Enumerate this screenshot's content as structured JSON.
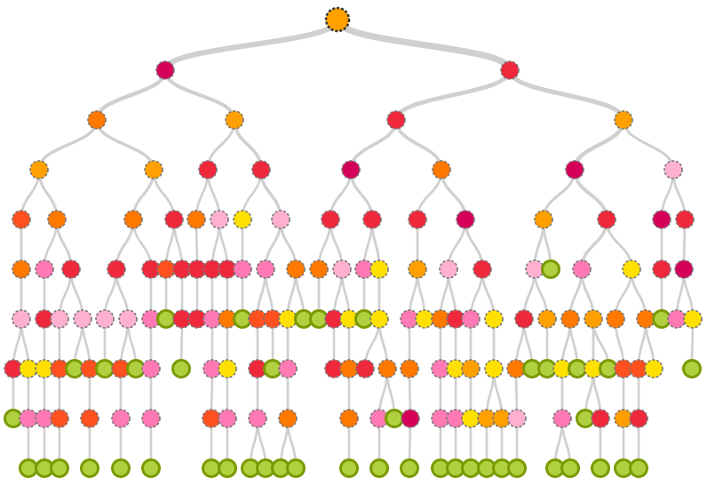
{
  "palette": {
    "amber": "#ffa000",
    "crimson": "#d4005a",
    "red": "#f0283c",
    "orange": "#ff7800",
    "redorange": "#ff5020",
    "pink": "#ff7ab4",
    "lightpink": "#ffb0d0",
    "yellow": "#ffe000",
    "green": "#b0d040",
    "green_stroke": "#7a9a00",
    "node_border": "#777777",
    "edge": "#d0d0d0"
  },
  "levels": [
    [
      {
        "c": "amber",
        "p": null
      }
    ],
    [
      {
        "c": "crimson",
        "p": 0
      },
      {
        "c": "red",
        "p": 0
      }
    ],
    [
      {
        "c": "orange",
        "p": 0
      },
      {
        "c": "amber",
        "p": 0
      },
      {
        "c": "red",
        "p": 1
      },
      {
        "c": "amber",
        "p": 1
      }
    ],
    [
      {
        "c": "amber",
        "p": 0
      },
      {
        "c": "amber",
        "p": 0
      },
      {
        "c": "red",
        "p": 1
      },
      {
        "c": "red",
        "p": 1
      },
      {
        "c": "crimson",
        "p": 2
      },
      {
        "c": "orange",
        "p": 2
      },
      {
        "c": "crimson",
        "p": 3
      },
      {
        "c": "lightpink",
        "p": 3
      }
    ],
    [
      {
        "c": "redorange",
        "p": 0
      },
      {
        "c": "orange",
        "p": 0
      },
      {
        "c": "orange",
        "p": 1
      },
      {
        "c": "red",
        "p": 1
      },
      {
        "c": "orange",
        "p": 2
      },
      {
        "c": "lightpink",
        "p": 2
      },
      {
        "c": "yellow",
        "p": 3
      },
      {
        "c": "lightpink",
        "p": 3
      },
      {
        "c": "red",
        "p": 4
      },
      {
        "c": "red",
        "p": 4
      },
      {
        "c": "red",
        "p": 5
      },
      {
        "c": "crimson",
        "p": 5
      },
      {
        "c": "amber",
        "p": 6
      },
      {
        "c": "red",
        "p": 6
      },
      {
        "c": "crimson",
        "p": 7
      },
      {
        "c": "red",
        "p": 7
      }
    ],
    [
      {
        "c": "orange",
        "p": 0
      },
      {
        "c": "pink",
        "p": 1
      },
      {
        "c": "red",
        "p": 1
      },
      {
        "c": "red",
        "p": 2
      },
      {
        "c": "red",
        "p": 2
      },
      {
        "c": "redorange",
        "p": 3
      },
      {
        "c": "red",
        "p": 3
      },
      {
        "c": "red",
        "p": 4
      },
      {
        "c": "red",
        "p": 5
      },
      {
        "c": "red",
        "p": 5
      },
      {
        "c": "pink",
        "p": 6
      },
      {
        "c": "pink",
        "p": 7
      },
      {
        "c": "orange",
        "p": 7
      },
      {
        "c": "orange",
        "p": 8
      },
      {
        "c": "lightpink",
        "p": 8
      },
      {
        "c": "pink",
        "p": 9
      },
      {
        "c": "yellow",
        "p": 9
      },
      {
        "c": "amber",
        "p": 10
      },
      {
        "c": "lightpink",
        "p": 11
      },
      {
        "c": "red",
        "p": 11
      },
      {
        "c": "lightpink",
        "p": 12
      },
      {
        "c": "green",
        "p": 12
      },
      {
        "c": "pink",
        "p": 13
      },
      {
        "c": "yellow",
        "p": 13
      },
      {
        "c": "red",
        "p": 14
      },
      {
        "c": "crimson",
        "p": 15
      }
    ],
    [
      {
        "c": "lightpink",
        "p": 0
      },
      {
        "c": "red",
        "p": 1
      },
      {
        "c": "lightpink",
        "p": 2
      },
      {
        "c": "lightpink",
        "p": 2
      },
      {
        "c": "lightpink",
        "p": 3
      },
      {
        "c": "lightpink",
        "p": 3
      },
      {
        "c": "pink",
        "p": 4
      },
      {
        "c": "green",
        "p": 5
      },
      {
        "c": "red",
        "p": 6
      },
      {
        "c": "red",
        "p": 7
      },
      {
        "c": "pink",
        "p": 8
      },
      {
        "c": "orange",
        "p": 9
      },
      {
        "c": "green",
        "p": 10
      },
      {
        "c": "redorange",
        "p": 11
      },
      {
        "c": "redorange",
        "p": 11
      },
      {
        "c": "yellow",
        "p": 12
      },
      {
        "c": "green",
        "p": 12
      },
      {
        "c": "green",
        "p": 13
      },
      {
        "c": "red",
        "p": 14
      },
      {
        "c": "yellow",
        "p": 14
      },
      {
        "c": "green",
        "p": 15
      },
      {
        "c": "yellow",
        "p": 16
      },
      {
        "c": "pink",
        "p": 17
      },
      {
        "c": "yellow",
        "p": 17
      },
      {
        "c": "orange",
        "p": 18
      },
      {
        "c": "red",
        "p": 18
      },
      {
        "c": "pink",
        "p": 19
      },
      {
        "c": "yellow",
        "p": 19
      },
      {
        "c": "red",
        "p": 20
      },
      {
        "c": "amber",
        "p": 20
      },
      {
        "c": "orange",
        "p": 22
      },
      {
        "c": "amber",
        "p": 22
      },
      {
        "c": "orange",
        "p": 23
      },
      {
        "c": "orange",
        "p": 23
      },
      {
        "c": "green",
        "p": 24
      },
      {
        "c": "pink",
        "p": 25
      },
      {
        "c": "yellow",
        "p": 25
      }
    ],
    [
      {
        "c": "red",
        "p": 0
      },
      {
        "c": "yellow",
        "p": 0
      },
      {
        "c": "yellow",
        "p": 1
      },
      {
        "c": "redorange",
        "p": 2
      },
      {
        "c": "green",
        "p": 3
      },
      {
        "c": "redorange",
        "p": 3
      },
      {
        "c": "green",
        "p": 4
      },
      {
        "c": "redorange",
        "p": 5
      },
      {
        "c": "green",
        "p": 5
      },
      {
        "c": "pink",
        "p": 6
      },
      {
        "c": "green",
        "p": 8
      },
      {
        "c": "pink",
        "p": 10
      },
      {
        "c": "yellow",
        "p": 11
      },
      {
        "c": "red",
        "p": 13
      },
      {
        "c": "green",
        "p": 14
      },
      {
        "c": "pink",
        "p": 15
      },
      {
        "c": "red",
        "p": 18
      },
      {
        "c": "orange",
        "p": 19
      },
      {
        "c": "red",
        "p": 21
      },
      {
        "c": "orange",
        "p": 21
      },
      {
        "c": "orange",
        "p": 22
      },
      {
        "c": "pink",
        "p": 24
      },
      {
        "c": "yellow",
        "p": 25
      },
      {
        "c": "amber",
        "p": 26
      },
      {
        "c": "yellow",
        "p": 27
      },
      {
        "c": "orange",
        "p": 28
      },
      {
        "c": "green",
        "p": 28
      },
      {
        "c": "green",
        "p": 29
      },
      {
        "c": "yellow",
        "p": 30
      },
      {
        "c": "green",
        "p": 30
      },
      {
        "c": "yellow",
        "p": 31
      },
      {
        "c": "green",
        "p": 31
      },
      {
        "c": "redorange",
        "p": 32
      },
      {
        "c": "redorange",
        "p": 33
      },
      {
        "c": "yellow",
        "p": 33
      },
      {
        "c": "green",
        "p": 36
      }
    ],
    [
      {
        "c": "green",
        "p": 0
      },
      {
        "c": "pink",
        "p": 1
      },
      {
        "c": "pink",
        "p": 2
      },
      {
        "c": "redorange",
        "p": 3
      },
      {
        "c": "redorange",
        "p": 5
      },
      {
        "c": "pink",
        "p": 7
      },
      {
        "c": "pink",
        "p": 9
      },
      {
        "c": "redorange",
        "p": 11
      },
      {
        "c": "pink",
        "p": 12
      },
      {
        "c": "pink",
        "p": 13
      },
      {
        "c": "orange",
        "p": 15
      },
      {
        "c": "orange",
        "p": 17
      },
      {
        "c": "pink",
        "p": 19
      },
      {
        "c": "green",
        "p": 19
      },
      {
        "c": "crimson",
        "p": 20
      },
      {
        "c": "pink",
        "p": 21
      },
      {
        "c": "pink",
        "p": 22
      },
      {
        "c": "yellow",
        "p": 23
      },
      {
        "c": "amber",
        "p": 24
      },
      {
        "c": "amber",
        "p": 24
      },
      {
        "c": "lightpink",
        "p": 25
      },
      {
        "c": "pink",
        "p": 28
      },
      {
        "c": "green",
        "p": 30
      },
      {
        "c": "red",
        "p": 30
      },
      {
        "c": "amber",
        "p": 32
      },
      {
        "c": "red",
        "p": 33
      }
    ],
    [
      {
        "c": "green",
        "p": 1
      },
      {
        "c": "green",
        "p": 2
      },
      {
        "c": "green",
        "p": 3
      },
      {
        "c": "green",
        "p": 4
      },
      {
        "c": "green",
        "p": 5
      },
      {
        "c": "green",
        "p": 6
      },
      {
        "c": "green",
        "p": 7
      },
      {
        "c": "green",
        "p": 8
      },
      {
        "c": "green",
        "p": 9
      },
      {
        "c": "green",
        "p": 9
      },
      {
        "c": "green",
        "p": 10
      },
      {
        "c": "green",
        "p": 10
      },
      {
        "c": "green",
        "p": 11
      },
      {
        "c": "green",
        "p": 12
      },
      {
        "c": "green",
        "p": 14
      },
      {
        "c": "green",
        "p": 15
      },
      {
        "c": "green",
        "p": 16
      },
      {
        "c": "green",
        "p": 17
      },
      {
        "c": "green",
        "p": 18
      },
      {
        "c": "green",
        "p": 19
      },
      {
        "c": "green",
        "p": 20
      },
      {
        "c": "green",
        "p": 21
      },
      {
        "c": "green",
        "p": 21
      },
      {
        "c": "green",
        "p": 23
      },
      {
        "c": "green",
        "p": 24
      },
      {
        "c": "green",
        "p": 25
      }
    ]
  ]
}
